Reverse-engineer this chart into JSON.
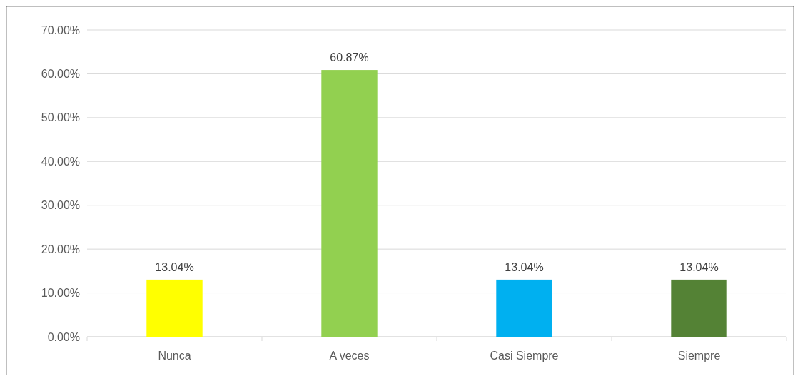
{
  "chart_data": {
    "type": "bar",
    "categories": [
      "Nunca",
      "A veces",
      "Casi Siempre",
      "Siempre"
    ],
    "values": [
      13.04,
      60.87,
      13.04,
      13.04
    ],
    "colors": [
      "#ffff00",
      "#92d050",
      "#00b0f0",
      "#548235"
    ],
    "value_labels": [
      "13.04%",
      "60.87%",
      "13.04%",
      "13.04%"
    ],
    "ylim": [
      0,
      70
    ],
    "yticks": [
      {
        "value": 0,
        "label": "0.00%"
      },
      {
        "value": 10,
        "label": "10.00%"
      },
      {
        "value": 20,
        "label": "20.00%"
      },
      {
        "value": 30,
        "label": "30.00%"
      },
      {
        "value": 40,
        "label": "40.00%"
      },
      {
        "value": 50,
        "label": "50.00%"
      },
      {
        "value": 60,
        "label": "60.00%"
      },
      {
        "value": 70,
        "label": "70.00%"
      }
    ],
    "grid": "y"
  }
}
